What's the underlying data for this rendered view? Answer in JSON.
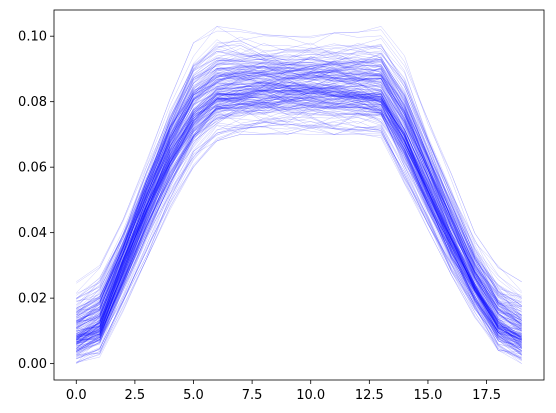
{
  "chart_data": {
    "type": "line",
    "title": "",
    "xlabel": "",
    "ylabel": "",
    "xlim": [
      -0.95,
      19.95
    ],
    "ylim": [
      -0.005,
      0.108
    ],
    "grid": false,
    "legend": "none",
    "line_color": "#0000ff",
    "x": [
      0,
      1,
      2,
      3,
      4,
      5,
      6,
      7,
      8,
      9,
      10,
      11,
      12,
      13,
      14,
      15,
      16,
      17,
      18,
      19
    ],
    "num_series": 240,
    "series_envelope": {
      "min": [
        0.0,
        0.002,
        0.016,
        0.032,
        0.047,
        0.06,
        0.068,
        0.07,
        0.07,
        0.07,
        0.07,
        0.07,
        0.07,
        0.069,
        0.055,
        0.041,
        0.027,
        0.014,
        0.004,
        0.0
      ],
      "median": [
        0.008,
        0.012,
        0.03,
        0.048,
        0.064,
        0.076,
        0.082,
        0.083,
        0.084,
        0.084,
        0.084,
        0.084,
        0.083,
        0.082,
        0.07,
        0.054,
        0.038,
        0.024,
        0.012,
        0.008
      ],
      "max": [
        0.025,
        0.03,
        0.044,
        0.062,
        0.081,
        0.098,
        0.103,
        0.102,
        0.101,
        0.1,
        0.1,
        0.101,
        0.102,
        0.103,
        0.094,
        0.075,
        0.058,
        0.04,
        0.03,
        0.025
      ]
    },
    "x_ticks": [
      0.0,
      2.5,
      5.0,
      7.5,
      10.0,
      12.5,
      15.0,
      17.5
    ],
    "x_tick_labels": [
      "0.0",
      "2.5",
      "5.0",
      "7.5",
      "10.0",
      "12.5",
      "15.0",
      "17.5"
    ],
    "y_ticks": [
      0.0,
      0.02,
      0.04,
      0.06,
      0.08,
      0.1
    ],
    "y_tick_labels": [
      "0.00",
      "0.02",
      "0.04",
      "0.06",
      "0.08",
      "0.10"
    ]
  }
}
